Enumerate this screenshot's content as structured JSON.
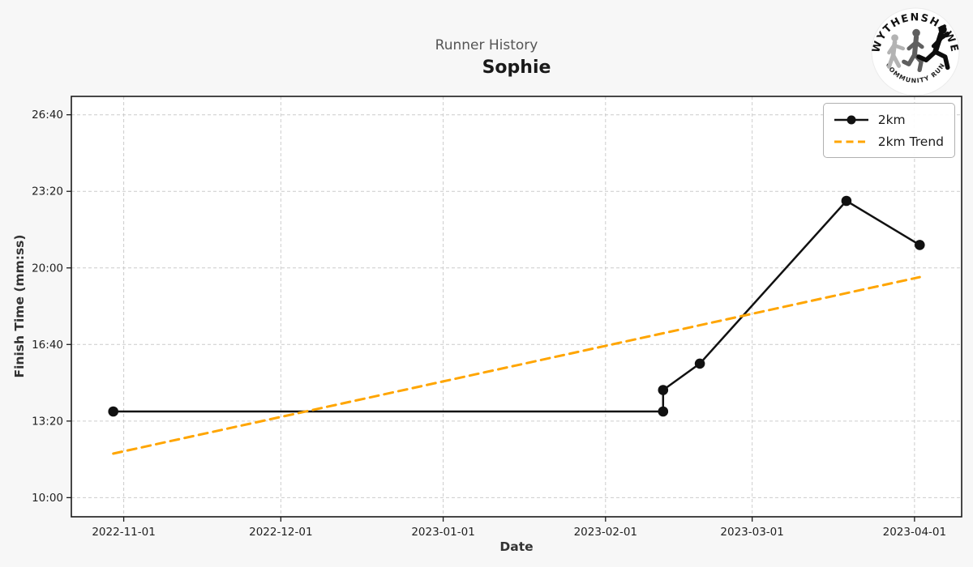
{
  "page": {
    "background": "#f7f7f7"
  },
  "header": {
    "suptitle": "Runner History",
    "title": "Sophie"
  },
  "logo": {
    "top_text": "WYTHENSHAWE",
    "bottom_text": "COMMUNITY RUN"
  },
  "chart_data": {
    "type": "line",
    "title": "Runner History",
    "subtitle": "Sophie",
    "xlabel": "Date",
    "ylabel": "Finish Time (mm:ss)",
    "grid": true,
    "legend_position": "upper right",
    "x_ticks": [
      "2022-11-01",
      "2022-12-01",
      "2023-01-01",
      "2023-02-01",
      "2023-03-01",
      "2023-04-01"
    ],
    "y_ticks": [
      "10:00",
      "13:20",
      "16:40",
      "20:00",
      "23:20",
      "26:40"
    ],
    "x_range": [
      "2022-10-22",
      "2023-04-10"
    ],
    "y_range_seconds": [
      550,
      1648
    ],
    "colors": {
      "grid": "#cccccc",
      "spine": "#1a1a1a",
      "plot_bg": "#ffffff",
      "tick_label": "#1f1f1f"
    },
    "series": [
      {
        "name": "2km",
        "color": "#111111",
        "line_style": "solid",
        "marker": "circle",
        "points": [
          {
            "date": "2022-10-30",
            "time": "13:45"
          },
          {
            "date": "2023-02-12",
            "time": "13:45"
          },
          {
            "date": "2023-02-12",
            "time": "14:41"
          },
          {
            "date": "2023-02-19",
            "time": "15:50"
          },
          {
            "date": "2023-03-19",
            "time": "22:55"
          },
          {
            "date": "2023-04-02",
            "time": "21:00"
          }
        ]
      },
      {
        "name": "2km Trend",
        "color": "#FFA500",
        "line_style": "dashed",
        "marker": "none",
        "points": [
          {
            "date": "2022-10-30",
            "time": "11:55"
          },
          {
            "date": "2023-04-02",
            "time": "19:36"
          }
        ]
      }
    ]
  }
}
